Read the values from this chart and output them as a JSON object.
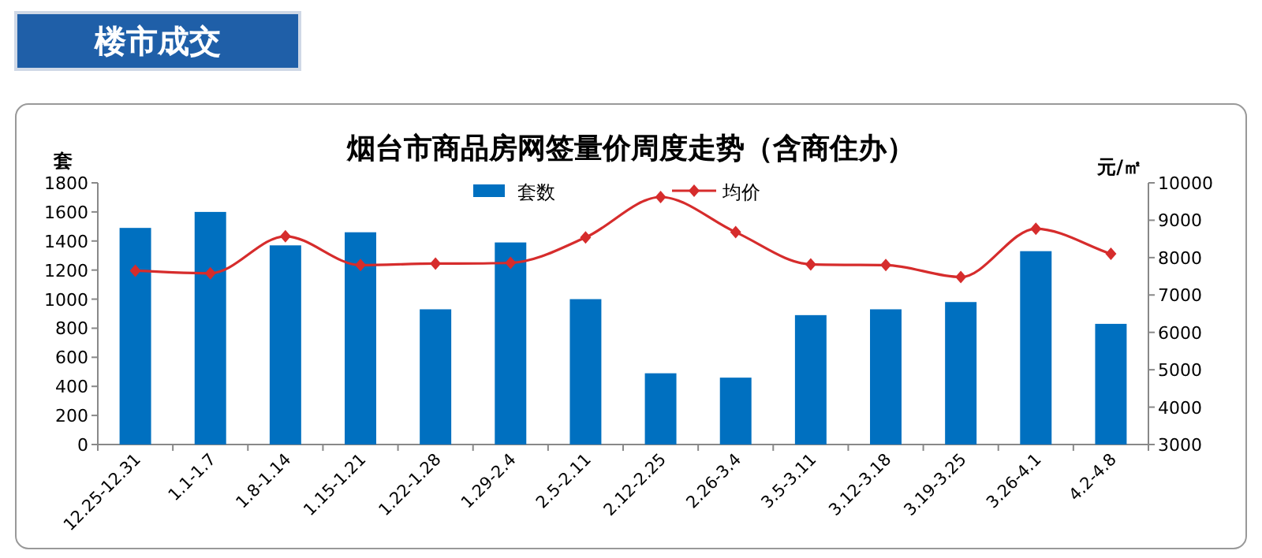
{
  "chart_data": {
    "type": "bar",
    "title": "烟台市商品房网签量价周度走势（含商住办）",
    "ylabel": "套",
    "y2label": "元/㎡",
    "annotations": [
      "楼市成交"
    ],
    "categories": [
      "12.25-12.31",
      "1.1-1.7",
      "1.8-1.14",
      "1.15-1.21",
      "1.22-1.28",
      "1.29-2.4",
      "2.5-2.11",
      "2.12-2.25",
      "2.26-3.4",
      "3.5-3.11",
      "3.12-3.18",
      "3.19-3.25",
      "3.26-4.1",
      "4.2-4.8"
    ],
    "series": [
      {
        "name": "套数",
        "color": "#0070c0",
        "values": [
          1490,
          1600,
          1370,
          1460,
          930,
          1390,
          1000,
          490,
          460,
          890,
          930,
          980,
          1330,
          830
        ]
      },
      {
        "name": "均价",
        "type": "line",
        "axis": "y2",
        "color": "#d62c2c",
        "marker": "diamond",
        "values": [
          7650,
          7580,
          8570,
          7800,
          7840,
          7860,
          8540,
          9620,
          8680,
          7820,
          7800,
          7480,
          8770,
          8100
        ]
      }
    ],
    "ylim": [
      0,
      1800
    ],
    "yticks": [
      0,
      200,
      400,
      600,
      800,
      1000,
      1200,
      1400,
      1600,
      1800
    ],
    "y2lim": [
      3000,
      10000
    ],
    "y2ticks": [
      3000,
      4000,
      5000,
      6000,
      7000,
      8000,
      9000,
      10000
    ],
    "legend": "top",
    "grid": false
  }
}
